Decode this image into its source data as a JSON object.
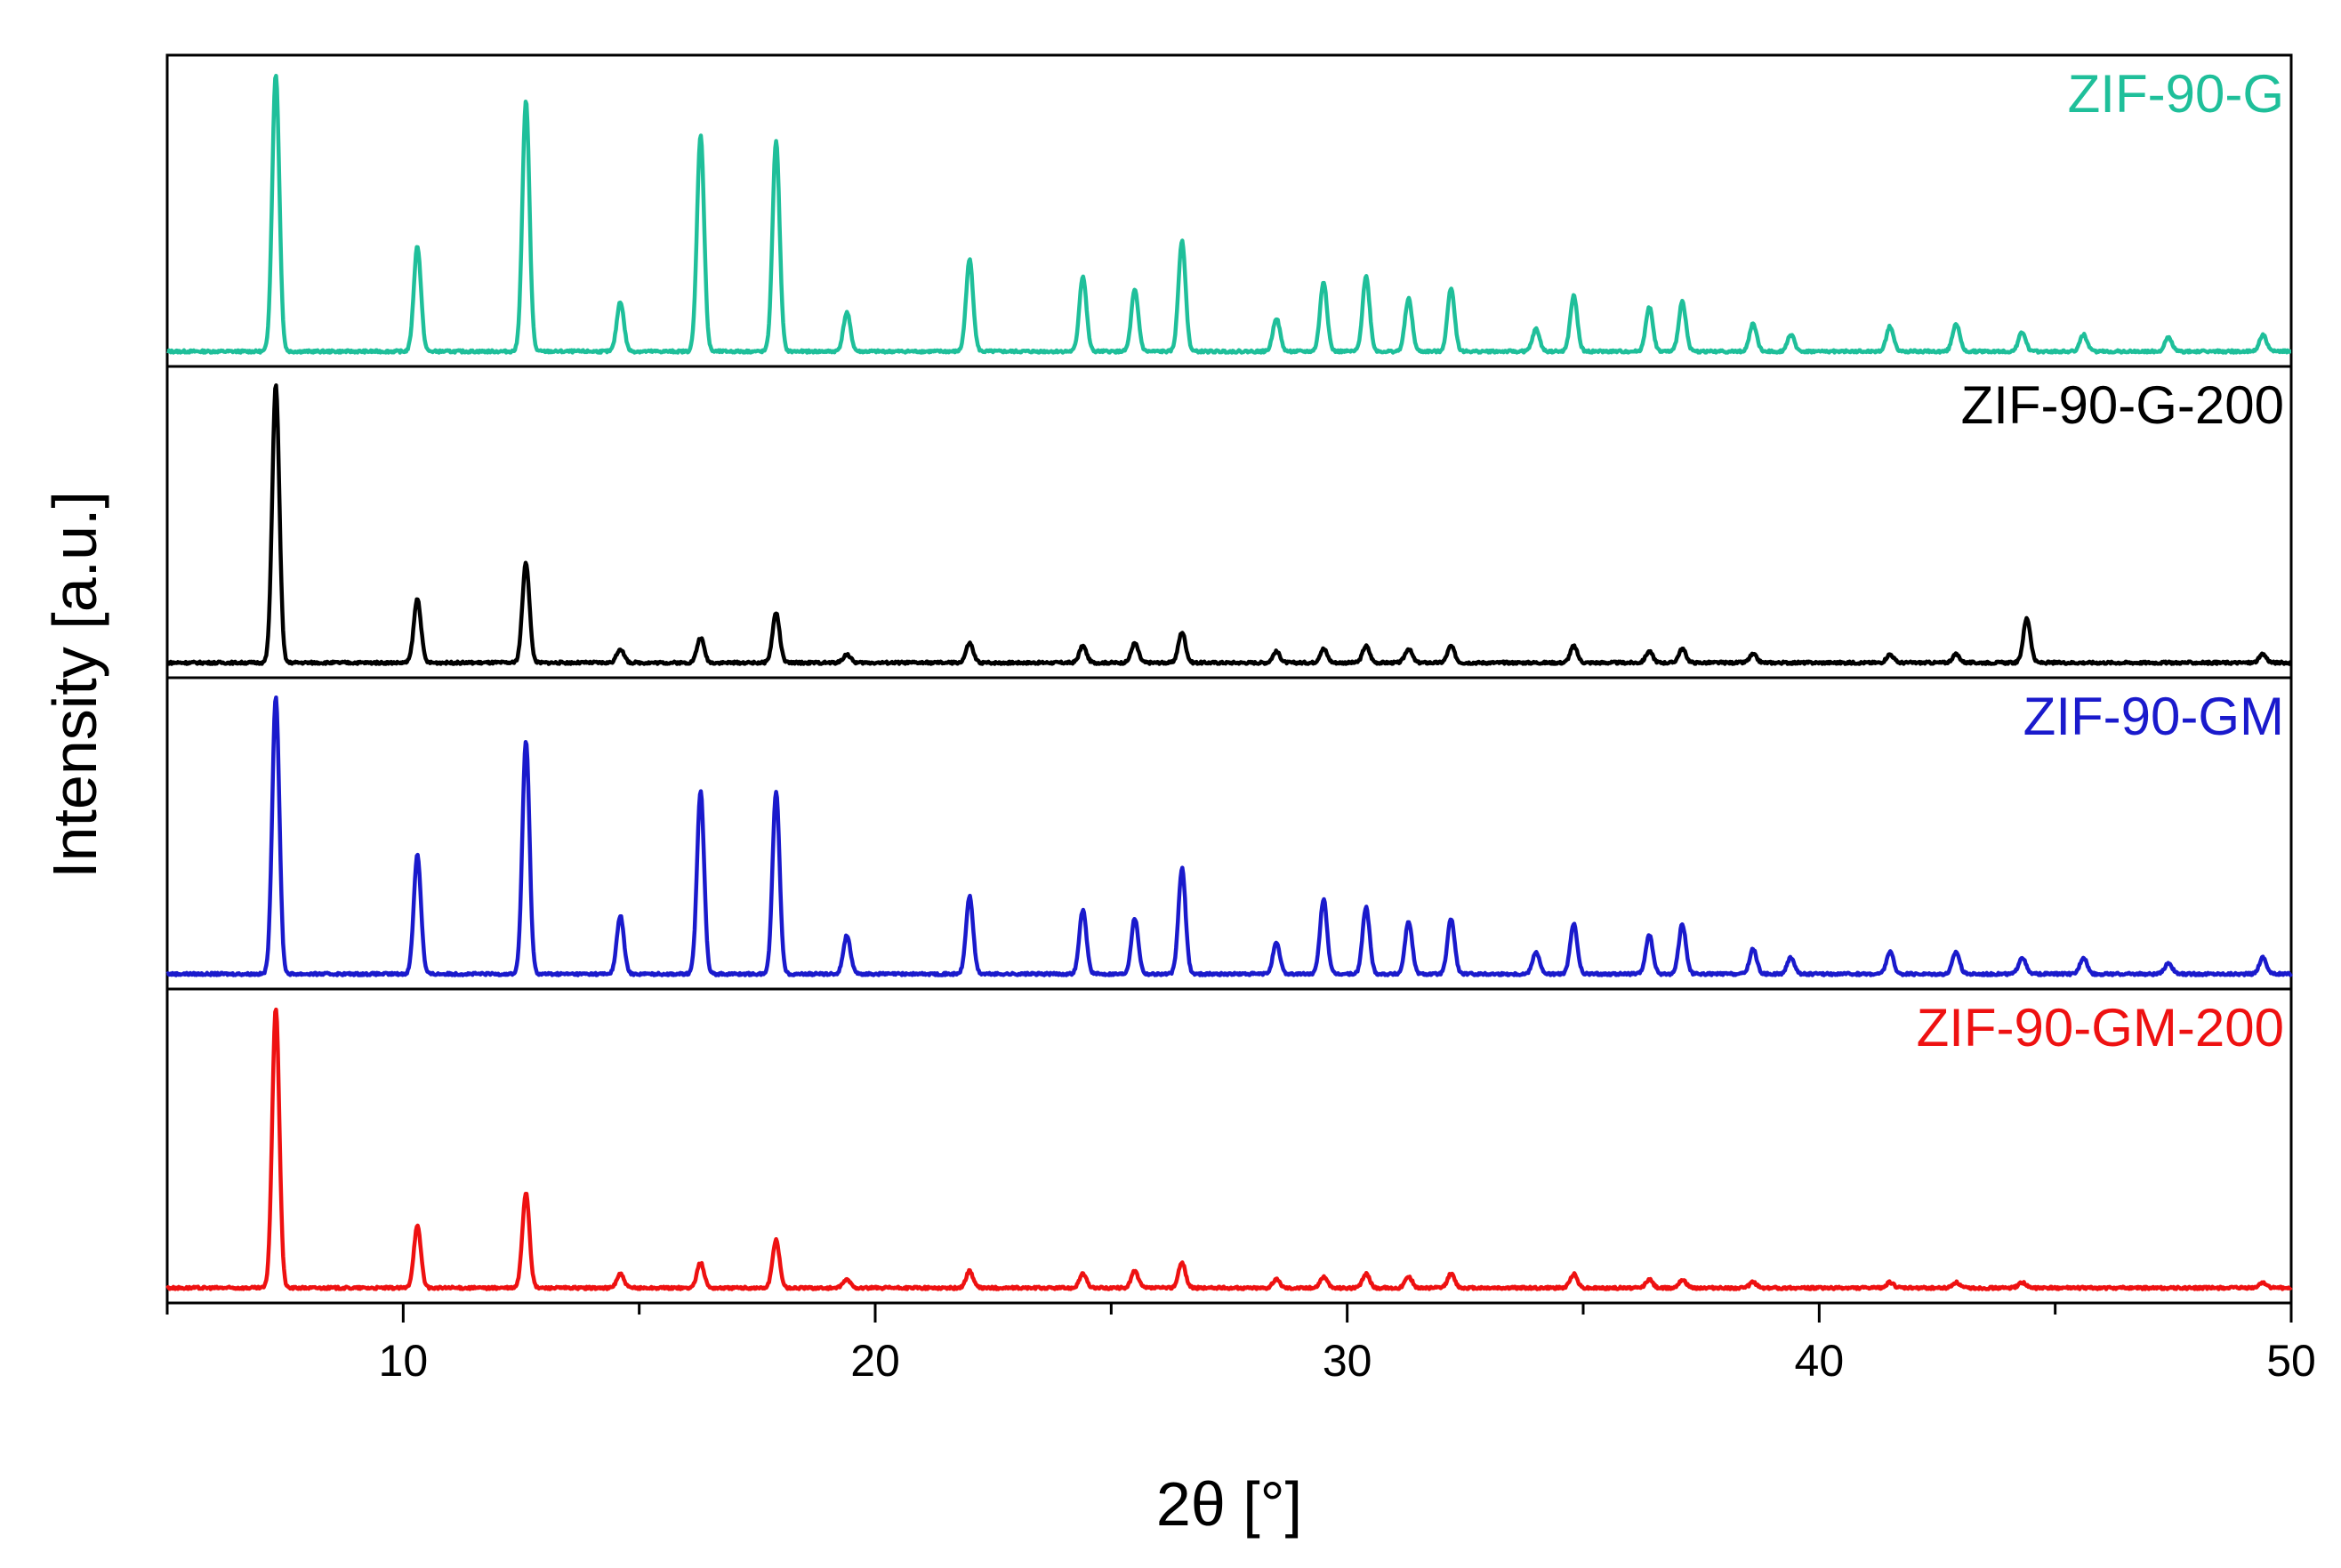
{
  "chart_data": {
    "type": "line",
    "title": "",
    "xlabel": "2θ [°]",
    "ylabel": "Intensity [a.u.]",
    "xlim": [
      5,
      50
    ],
    "ylim": [
      0,
      100
    ],
    "x_ticks": [
      10,
      20,
      30,
      40,
      50
    ],
    "x_tick_labels": [
      "10",
      "20",
      "30",
      "40",
      "50"
    ],
    "y_ticks_visible": false,
    "layout": "stacked panels, one series per panel, top to bottom",
    "series": [
      {
        "name": "ZIF-90-G",
        "color": "#1fbf9a",
        "peaks": [
          {
            "x": 7.3,
            "h": 100
          },
          {
            "x": 10.3,
            "h": 38
          },
          {
            "x": 12.6,
            "h": 90
          },
          {
            "x": 14.6,
            "h": 18
          },
          {
            "x": 16.3,
            "h": 78
          },
          {
            "x": 17.9,
            "h": 76
          },
          {
            "x": 19.4,
            "h": 14
          },
          {
            "x": 22.0,
            "h": 33
          },
          {
            "x": 24.4,
            "h": 27
          },
          {
            "x": 25.5,
            "h": 22
          },
          {
            "x": 26.5,
            "h": 40
          },
          {
            "x": 28.5,
            "h": 12
          },
          {
            "x": 29.5,
            "h": 25
          },
          {
            "x": 30.4,
            "h": 27
          },
          {
            "x": 31.3,
            "h": 19
          },
          {
            "x": 32.2,
            "h": 23
          },
          {
            "x": 34.0,
            "h": 8
          },
          {
            "x": 34.8,
            "h": 20
          },
          {
            "x": 36.4,
            "h": 16
          },
          {
            "x": 37.1,
            "h": 18
          },
          {
            "x": 38.6,
            "h": 10
          },
          {
            "x": 39.4,
            "h": 6
          },
          {
            "x": 41.5,
            "h": 9
          },
          {
            "x": 42.9,
            "h": 10
          },
          {
            "x": 44.3,
            "h": 7
          },
          {
            "x": 45.6,
            "h": 6
          },
          {
            "x": 47.4,
            "h": 5
          },
          {
            "x": 49.4,
            "h": 6
          }
        ]
      },
      {
        "name": "ZIF-90-G-200",
        "color": "#000000",
        "peaks": [
          {
            "x": 7.3,
            "h": 100
          },
          {
            "x": 10.3,
            "h": 23
          },
          {
            "x": 12.6,
            "h": 36
          },
          {
            "x": 14.6,
            "h": 5
          },
          {
            "x": 16.3,
            "h": 9
          },
          {
            "x": 17.9,
            "h": 18
          },
          {
            "x": 19.4,
            "h": 3
          },
          {
            "x": 22.0,
            "h": 7
          },
          {
            "x": 24.4,
            "h": 6
          },
          {
            "x": 25.5,
            "h": 7
          },
          {
            "x": 26.5,
            "h": 11
          },
          {
            "x": 28.5,
            "h": 4
          },
          {
            "x": 29.5,
            "h": 5
          },
          {
            "x": 30.4,
            "h": 6
          },
          {
            "x": 31.3,
            "h": 5
          },
          {
            "x": 32.2,
            "h": 6
          },
          {
            "x": 34.8,
            "h": 6
          },
          {
            "x": 36.4,
            "h": 4
          },
          {
            "x": 37.1,
            "h": 5
          },
          {
            "x": 38.6,
            "h": 3
          },
          {
            "x": 41.5,
            "h": 3
          },
          {
            "x": 42.9,
            "h": 3
          },
          {
            "x": 44.4,
            "h": 16
          },
          {
            "x": 49.4,
            "h": 3
          }
        ]
      },
      {
        "name": "ZIF-90-GM",
        "color": "#1a1acc",
        "peaks": [
          {
            "x": 7.3,
            "h": 100
          },
          {
            "x": 10.3,
            "h": 43
          },
          {
            "x": 12.6,
            "h": 84
          },
          {
            "x": 14.6,
            "h": 21
          },
          {
            "x": 16.3,
            "h": 66
          },
          {
            "x": 17.9,
            "h": 66
          },
          {
            "x": 19.4,
            "h": 14
          },
          {
            "x": 22.0,
            "h": 28
          },
          {
            "x": 24.4,
            "h": 23
          },
          {
            "x": 25.5,
            "h": 20
          },
          {
            "x": 26.5,
            "h": 38
          },
          {
            "x": 28.5,
            "h": 11
          },
          {
            "x": 29.5,
            "h": 27
          },
          {
            "x": 30.4,
            "h": 24
          },
          {
            "x": 31.3,
            "h": 19
          },
          {
            "x": 32.2,
            "h": 20
          },
          {
            "x": 34.0,
            "h": 8
          },
          {
            "x": 34.8,
            "h": 18
          },
          {
            "x": 36.4,
            "h": 14
          },
          {
            "x": 37.1,
            "h": 18
          },
          {
            "x": 38.6,
            "h": 9
          },
          {
            "x": 39.4,
            "h": 6
          },
          {
            "x": 41.5,
            "h": 8
          },
          {
            "x": 42.9,
            "h": 8
          },
          {
            "x": 44.3,
            "h": 6
          },
          {
            "x": 45.6,
            "h": 6
          },
          {
            "x": 47.4,
            "h": 4
          },
          {
            "x": 49.4,
            "h": 6
          }
        ]
      },
      {
        "name": "ZIF-90-GM-200",
        "color": "#ee1111",
        "peaks": [
          {
            "x": 7.3,
            "h": 100
          },
          {
            "x": 10.3,
            "h": 22
          },
          {
            "x": 12.6,
            "h": 34
          },
          {
            "x": 14.6,
            "h": 5
          },
          {
            "x": 16.3,
            "h": 9
          },
          {
            "x": 17.9,
            "h": 17
          },
          {
            "x": 19.4,
            "h": 3
          },
          {
            "x": 22.0,
            "h": 6
          },
          {
            "x": 24.4,
            "h": 5
          },
          {
            "x": 25.5,
            "h": 6
          },
          {
            "x": 26.5,
            "h": 9
          },
          {
            "x": 28.5,
            "h": 3
          },
          {
            "x": 29.5,
            "h": 4
          },
          {
            "x": 30.4,
            "h": 5
          },
          {
            "x": 31.3,
            "h": 4
          },
          {
            "x": 32.2,
            "h": 5
          },
          {
            "x": 34.8,
            "h": 5
          },
          {
            "x": 36.4,
            "h": 3
          },
          {
            "x": 37.1,
            "h": 3
          },
          {
            "x": 38.6,
            "h": 2
          },
          {
            "x": 41.5,
            "h": 2
          },
          {
            "x": 42.9,
            "h": 2
          },
          {
            "x": 44.3,
            "h": 2
          },
          {
            "x": 49.4,
            "h": 2
          }
        ]
      }
    ]
  }
}
